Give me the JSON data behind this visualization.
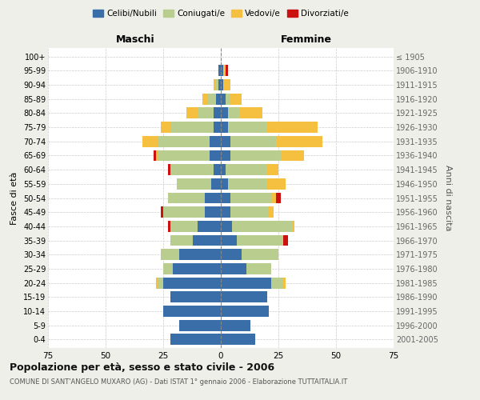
{
  "age_groups": [
    "100+",
    "95-99",
    "90-94",
    "85-89",
    "80-84",
    "75-79",
    "70-74",
    "65-69",
    "60-64",
    "55-59",
    "50-54",
    "45-49",
    "40-44",
    "35-39",
    "30-34",
    "25-29",
    "20-24",
    "15-19",
    "10-14",
    "5-9",
    "0-4"
  ],
  "birth_years": [
    "≤ 1905",
    "1906-1910",
    "1911-1915",
    "1916-1920",
    "1921-1925",
    "1926-1930",
    "1931-1935",
    "1936-1940",
    "1941-1945",
    "1946-1950",
    "1951-1955",
    "1956-1960",
    "1961-1965",
    "1966-1970",
    "1971-1975",
    "1976-1980",
    "1981-1985",
    "1986-1990",
    "1991-1995",
    "1996-2000",
    "2001-2005"
  ],
  "colors": {
    "celibe": "#3a6ea8",
    "coniugato": "#b8cd8e",
    "vedovo": "#f5c040",
    "divorziato": "#cc1111"
  },
  "males": {
    "celibe": [
      0,
      1,
      1,
      2,
      3,
      3,
      5,
      5,
      3,
      4,
      7,
      7,
      10,
      12,
      18,
      21,
      25,
      22,
      25,
      18,
      22
    ],
    "coniugato": [
      0,
      0,
      1,
      4,
      7,
      19,
      22,
      22,
      19,
      15,
      16,
      18,
      12,
      10,
      8,
      4,
      2,
      0,
      0,
      0,
      0
    ],
    "vedovo": [
      0,
      0,
      1,
      2,
      5,
      4,
      7,
      1,
      0,
      0,
      0,
      0,
      0,
      0,
      0,
      0,
      1,
      0,
      0,
      0,
      0
    ],
    "divorziato": [
      0,
      0,
      0,
      0,
      0,
      0,
      0,
      1,
      1,
      0,
      0,
      1,
      1,
      0,
      0,
      0,
      0,
      0,
      0,
      0,
      0
    ]
  },
  "females": {
    "nubile": [
      0,
      1,
      1,
      2,
      3,
      3,
      4,
      4,
      2,
      3,
      4,
      4,
      5,
      7,
      9,
      11,
      22,
      20,
      21,
      13,
      15
    ],
    "coniugata": [
      0,
      0,
      0,
      2,
      5,
      17,
      20,
      22,
      18,
      17,
      18,
      17,
      26,
      20,
      16,
      11,
      5,
      0,
      0,
      0,
      0
    ],
    "vedova": [
      0,
      1,
      3,
      5,
      10,
      22,
      20,
      10,
      5,
      8,
      2,
      2,
      1,
      0,
      0,
      0,
      1,
      0,
      0,
      0,
      0
    ],
    "divorziata": [
      0,
      1,
      0,
      0,
      0,
      0,
      0,
      0,
      0,
      0,
      2,
      0,
      0,
      2,
      0,
      0,
      0,
      0,
      0,
      0,
      0
    ]
  },
  "xlim": 75,
  "title": "Popolazione per età, sesso e stato civile - 2006",
  "subtitle": "COMUNE DI SANT'ANGELO MUXARO (AG) - Dati ISTAT 1° gennaio 2006 - Elaborazione TUTTAITALIA.IT",
  "ylabel_left": "Fasce di età",
  "ylabel_right": "Anni di nascita",
  "xlabel_left": "Maschi",
  "xlabel_right": "Femmine",
  "background_color": "#efefea",
  "plot_background": "#ffffff",
  "grid_color": "#cccccc"
}
